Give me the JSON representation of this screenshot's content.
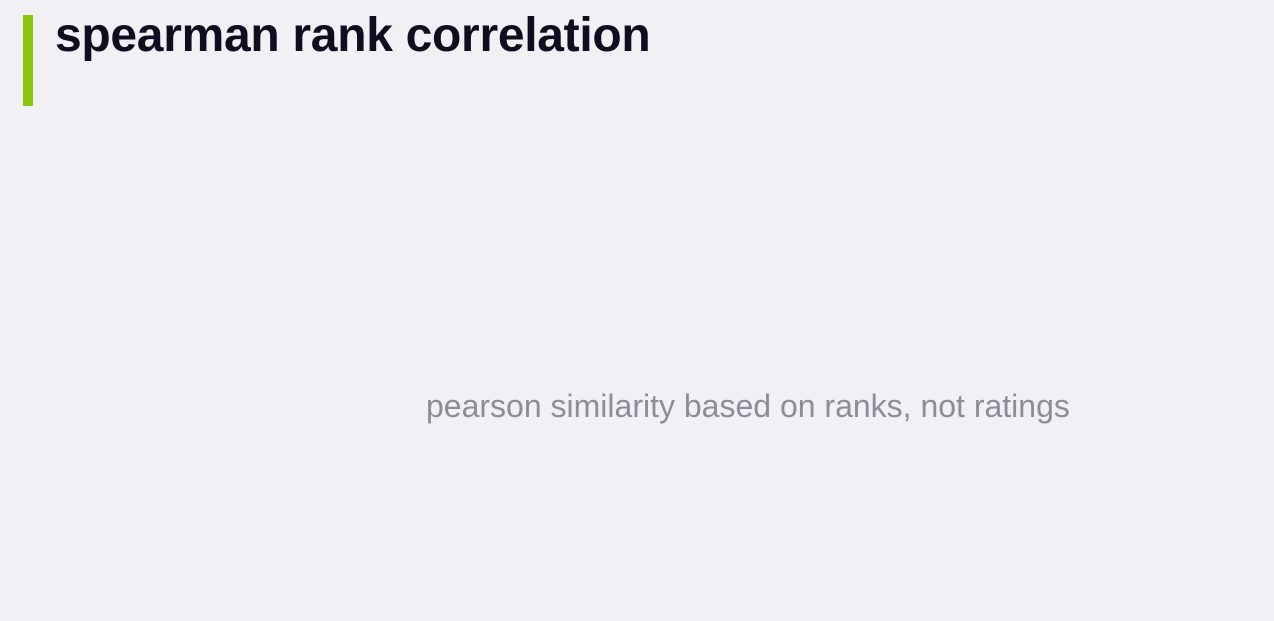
{
  "slide": {
    "title": "spearman rank correlation",
    "subtitle": "pearson similarity based on ranks, not ratings"
  },
  "colors": {
    "background": "#f1f0f5",
    "accent": "#8dc50a",
    "title": "#0f0d1e",
    "subtitle": "#8e8c96"
  }
}
